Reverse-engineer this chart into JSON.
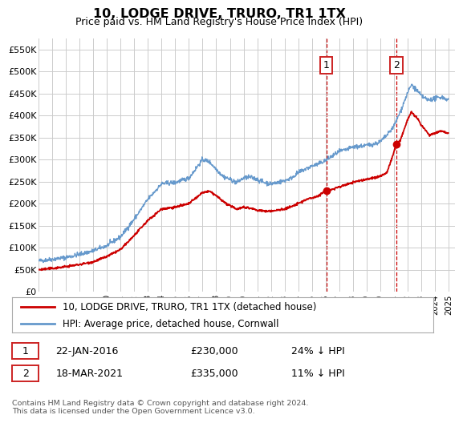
{
  "title": "10, LODGE DRIVE, TRURO, TR1 1TX",
  "subtitle": "Price paid vs. HM Land Registry's House Price Index (HPI)",
  "ylabel_ticks": [
    "£0",
    "£50K",
    "£100K",
    "£150K",
    "£200K",
    "£250K",
    "£300K",
    "£350K",
    "£400K",
    "£450K",
    "£500K",
    "£550K"
  ],
  "ytick_vals": [
    0,
    50000,
    100000,
    150000,
    200000,
    250000,
    300000,
    350000,
    400000,
    450000,
    500000,
    550000
  ],
  "ylim": [
    0,
    575000
  ],
  "xlim_start": 1995.0,
  "xlim_end": 2025.5,
  "xtick_years": [
    1995,
    1996,
    1997,
    1998,
    1999,
    2000,
    2001,
    2002,
    2003,
    2004,
    2005,
    2006,
    2007,
    2008,
    2009,
    2010,
    2011,
    2012,
    2013,
    2014,
    2015,
    2016,
    2017,
    2018,
    2019,
    2020,
    2021,
    2022,
    2023,
    2024,
    2025
  ],
  "hpi_color": "#6699cc",
  "price_color": "#cc0000",
  "grid_color": "#cccccc",
  "bg_color": "#ffffff",
  "sale1_x": 2016.055,
  "sale1_y": 230000,
  "sale1_label": "1",
  "sale2_x": 2021.21,
  "sale2_y": 335000,
  "sale2_label": "2",
  "legend_line1": "10, LODGE DRIVE, TRURO, TR1 1TX (detached house)",
  "legend_line2": "HPI: Average price, detached house, Cornwall",
  "note1_num": "1",
  "note1_date": "22-JAN-2016",
  "note1_price": "£230,000",
  "note1_hpi": "24% ↓ HPI",
  "note2_num": "2",
  "note2_date": "18-MAR-2021",
  "note2_price": "£335,000",
  "note2_hpi": "11% ↓ HPI",
  "footer": "Contains HM Land Registry data © Crown copyright and database right 2024.\nThis data is licensed under the Open Government Licence v3.0."
}
